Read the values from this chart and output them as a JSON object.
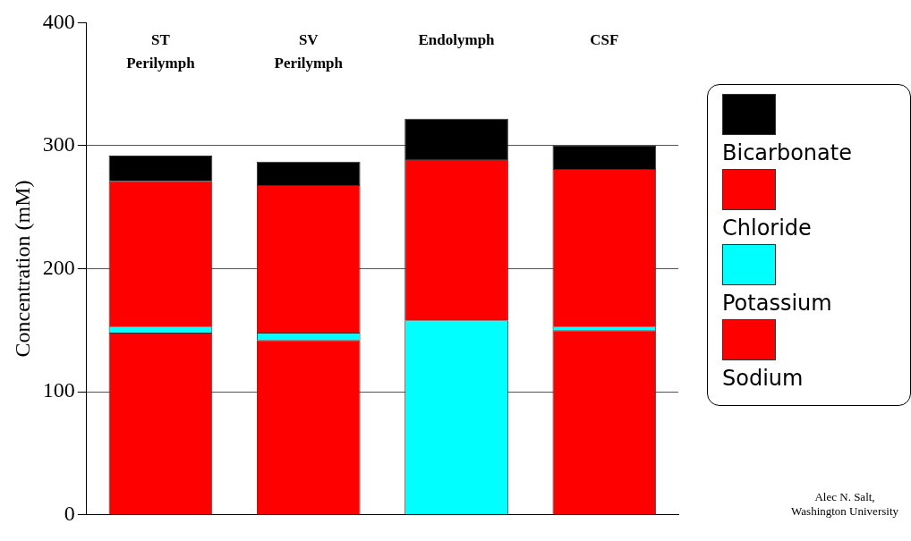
{
  "chart_data": {
    "type": "bar",
    "stacked": true,
    "ylabel": "Concentration (mM)",
    "categories": [
      "ST Perilymph",
      "SV Perilymph",
      "Endolymph",
      "CSF"
    ],
    "series": [
      {
        "name": "Sodium",
        "color": "#ff0000",
        "values": [
          148,
          142,
          null,
          150
        ]
      },
      {
        "name": "Potassium",
        "color": "#00ffff",
        "values": [
          5,
          6,
          158,
          3
        ]
      },
      {
        "name": "Chloride",
        "color": "#ff0000",
        "values": [
          118,
          120,
          131,
          128
        ]
      },
      {
        "name": "Bicarbonate",
        "color": "#000000",
        "values": [
          21,
          19,
          33,
          19
        ]
      }
    ],
    "ylim": [
      0,
      400
    ],
    "yticks": [
      0,
      100,
      200,
      300,
      400
    ],
    "grid": "y",
    "legend": "right",
    "annotations": [
      "Alec N. Salt,\nWashington University"
    ]
  }
}
